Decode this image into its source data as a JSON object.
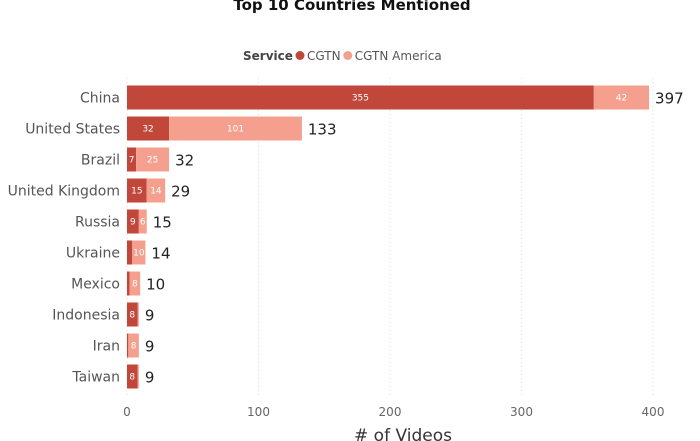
{
  "chart_data": {
    "type": "bar",
    "orientation": "horizontal",
    "stacked": true,
    "title": "Top 10 Countries Mentioned",
    "xlabel": "# of Videos",
    "ylabel": "",
    "xlim": [
      0,
      400
    ],
    "xticks": [
      0,
      100,
      200,
      300,
      400
    ],
    "grid": true,
    "legend": {
      "title": "Service",
      "position": "top-center"
    },
    "categories": [
      "China",
      "United States",
      "Brazil",
      "United Kingdom",
      "Russia",
      "Ukraine",
      "Mexico",
      "Indonesia",
      "Iran",
      "Taiwan"
    ],
    "series": [
      {
        "name": "CGTN",
        "color": "#c0473a",
        "values": [
          355,
          32,
          7,
          15,
          9,
          4,
          2,
          8,
          1,
          8
        ]
      },
      {
        "name": "CGTN America",
        "color": "#f5a08f",
        "values": [
          42,
          101,
          25,
          14,
          6,
          10,
          8,
          1,
          8,
          1
        ]
      }
    ],
    "segment_labels": [
      [
        "355",
        "42"
      ],
      [
        "32",
        "101"
      ],
      [
        "7",
        "25"
      ],
      [
        "15",
        "14"
      ],
      [
        "9",
        "6"
      ],
      [
        "",
        "10"
      ],
      [
        "",
        "8"
      ],
      [
        "8",
        ""
      ],
      [
        "",
        "8"
      ],
      [
        "8",
        ""
      ]
    ],
    "totals": [
      397,
      133,
      32,
      29,
      15,
      14,
      10,
      9,
      9,
      9
    ]
  }
}
